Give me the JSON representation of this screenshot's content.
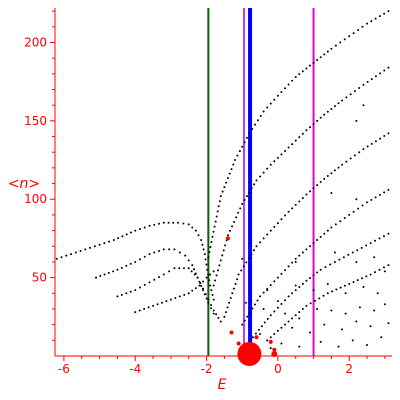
{
  "chart_data": {
    "type": "scatter",
    "title": "",
    "xlabel": "E",
    "ylabel": "<n>",
    "xlim": [
      -6.25,
      3.2
    ],
    "ylim": [
      0,
      222
    ],
    "grid": false,
    "xticks": [
      -6,
      -4,
      -2,
      0,
      2
    ],
    "yticks": [
      50,
      100,
      150,
      200
    ],
    "colors": {
      "axis": "#ff0000",
      "points": "#000000",
      "highlight": "#ff0000",
      "green_line": "#006400",
      "blue_line": "#0000ff",
      "magenta_line": "#dd00dd",
      "violet_line": "#aa44ff"
    },
    "vertical_lines": [
      {
        "x": -1.95,
        "color": "#006400"
      },
      {
        "x": -0.95,
        "color": "#aa44ff"
      },
      {
        "x": -0.78,
        "color": "#0000ff"
      },
      {
        "x": 1.0,
        "color": "#dd00dd"
      }
    ],
    "series": [
      {
        "points": [
          [
            -6.2,
            62
          ],
          [
            -5.4,
            68
          ],
          [
            -4.6,
            74
          ],
          [
            -4.0,
            80
          ],
          [
            -3.6,
            83
          ],
          [
            -3.2,
            85
          ],
          [
            -2.8,
            85
          ],
          [
            -2.5,
            84
          ],
          [
            -2.3,
            80
          ],
          [
            -2.15,
            74
          ],
          [
            -2.05,
            65
          ],
          [
            -1.98,
            55
          ],
          [
            -1.9,
            45
          ],
          [
            -1.8,
            36
          ]
        ]
      },
      {
        "points": [
          [
            -5.1,
            50
          ],
          [
            -4.5,
            55
          ],
          [
            -4.0,
            60
          ],
          [
            -3.6,
            65
          ],
          [
            -3.2,
            68
          ],
          [
            -2.9,
            68
          ],
          [
            -2.6,
            64
          ],
          [
            -2.4,
            58
          ],
          [
            -2.25,
            50
          ],
          [
            -2.1,
            42
          ],
          [
            -1.95,
            34
          ],
          [
            -1.8,
            27
          ]
        ]
      },
      {
        "points": [
          [
            -4.5,
            38
          ],
          [
            -4.0,
            42
          ],
          [
            -3.6,
            47
          ],
          [
            -3.2,
            52
          ],
          [
            -2.9,
            56
          ],
          [
            -2.5,
            56
          ],
          [
            -2.25,
            50
          ],
          [
            -2.1,
            43
          ],
          [
            -1.95,
            36
          ],
          [
            -1.8,
            29
          ],
          [
            -1.6,
            22
          ]
        ]
      },
      {
        "points": [
          [
            -4.0,
            28
          ],
          [
            -3.5,
            32
          ],
          [
            -3.0,
            36
          ],
          [
            -2.5,
            40
          ],
          [
            -2.2,
            45
          ],
          [
            -2.0,
            50
          ],
          [
            -1.8,
            54
          ]
        ]
      },
      {
        "points": [
          [
            -1.95,
            63
          ],
          [
            -1.6,
            102
          ],
          [
            -1.2,
            125
          ],
          [
            -0.8,
            142
          ],
          [
            -0.4,
            156
          ],
          [
            0.0,
            166
          ],
          [
            0.5,
            178
          ],
          [
            1.0,
            187
          ],
          [
            1.5,
            196
          ],
          [
            2.0,
            204
          ],
          [
            2.5,
            212
          ],
          [
            3.1,
            220
          ]
        ]
      },
      {
        "points": [
          [
            -1.8,
            45
          ],
          [
            -1.4,
            77
          ],
          [
            -1.0,
            97
          ],
          [
            -0.6,
            112
          ],
          [
            -0.2,
            122
          ],
          [
            0.3,
            133
          ],
          [
            0.8,
            144
          ],
          [
            1.3,
            154
          ],
          [
            1.8,
            163
          ],
          [
            2.4,
            173
          ],
          [
            3.1,
            184
          ]
        ]
      },
      {
        "points": [
          [
            -1.5,
            25
          ],
          [
            -1.1,
            52
          ],
          [
            -0.6,
            70
          ],
          [
            -0.2,
            80
          ],
          [
            0.3,
            92
          ],
          [
            0.8,
            103
          ],
          [
            1.3,
            113
          ],
          [
            1.8,
            122
          ],
          [
            2.4,
            132
          ],
          [
            3.1,
            142
          ]
        ]
      },
      {
        "points": [
          [
            -1.0,
            20
          ],
          [
            -0.5,
            38
          ],
          [
            0.0,
            50
          ],
          [
            0.5,
            62
          ],
          [
            1.0,
            72
          ],
          [
            1.5,
            82
          ],
          [
            2.0,
            90
          ],
          [
            2.5,
            98
          ],
          [
            3.1,
            106
          ]
        ]
      },
      {
        "points": [
          [
            -0.7,
            12
          ],
          [
            -0.2,
            26
          ],
          [
            0.3,
            38
          ],
          [
            0.8,
            48
          ],
          [
            1.2,
            55
          ],
          [
            1.6,
            60
          ],
          [
            2.1,
            66
          ],
          [
            2.6,
            72
          ],
          [
            3.1,
            78
          ]
        ]
      },
      {
        "points": [
          [
            -0.3,
            10
          ],
          [
            0.2,
            20
          ],
          [
            0.8,
            32
          ],
          [
            1.4,
            40
          ],
          [
            2.0,
            46
          ],
          [
            2.6,
            52
          ],
          [
            3.1,
            58
          ]
        ]
      }
    ],
    "scattered_points": [
      [
        -0.9,
        34
      ],
      [
        -0.4,
        30
      ],
      [
        0.2,
        27
      ],
      [
        0.6,
        24
      ],
      [
        1.1,
        30
      ],
      [
        1.5,
        29
      ],
      [
        1.9,
        27
      ],
      [
        2.3,
        31
      ],
      [
        2.7,
        29
      ],
      [
        3.0,
        33
      ],
      [
        0.4,
        18
      ],
      [
        0.9,
        15
      ],
      [
        1.3,
        20
      ],
      [
        1.8,
        17
      ],
      [
        2.2,
        22
      ],
      [
        2.6,
        19
      ],
      [
        3.1,
        21
      ],
      [
        0.1,
        8
      ],
      [
        0.6,
        6
      ],
      [
        1.2,
        9
      ],
      [
        1.7,
        6
      ],
      [
        2.1,
        10
      ],
      [
        2.5,
        7
      ],
      [
        2.9,
        12
      ],
      [
        -0.5,
        14
      ],
      [
        -0.2,
        5
      ],
      [
        0.5,
        45
      ],
      [
        1.0,
        42
      ],
      [
        1.4,
        46
      ],
      [
        1.9,
        40
      ],
      [
        2.4,
        44
      ],
      [
        2.8,
        40
      ],
      [
        1.6,
        66
      ],
      [
        2.2,
        60
      ],
      [
        2.7,
        63
      ],
      [
        3.0,
        54
      ],
      [
        2.2,
        100
      ],
      [
        2.4,
        160
      ],
      [
        2.2,
        150
      ],
      [
        1.5,
        104
      ],
      [
        0.5,
        60
      ],
      [
        -0.3,
        42
      ],
      [
        0.0,
        35
      ],
      [
        -1.0,
        62
      ]
    ],
    "highlight_points": [
      [
        -0.8,
        5
      ],
      [
        -1.1,
        8
      ],
      [
        -1.3,
        15
      ],
      [
        -0.1,
        4
      ],
      [
        -1.4,
        75
      ],
      [
        -0.6,
        12
      ],
      [
        -0.2,
        9
      ]
    ]
  }
}
